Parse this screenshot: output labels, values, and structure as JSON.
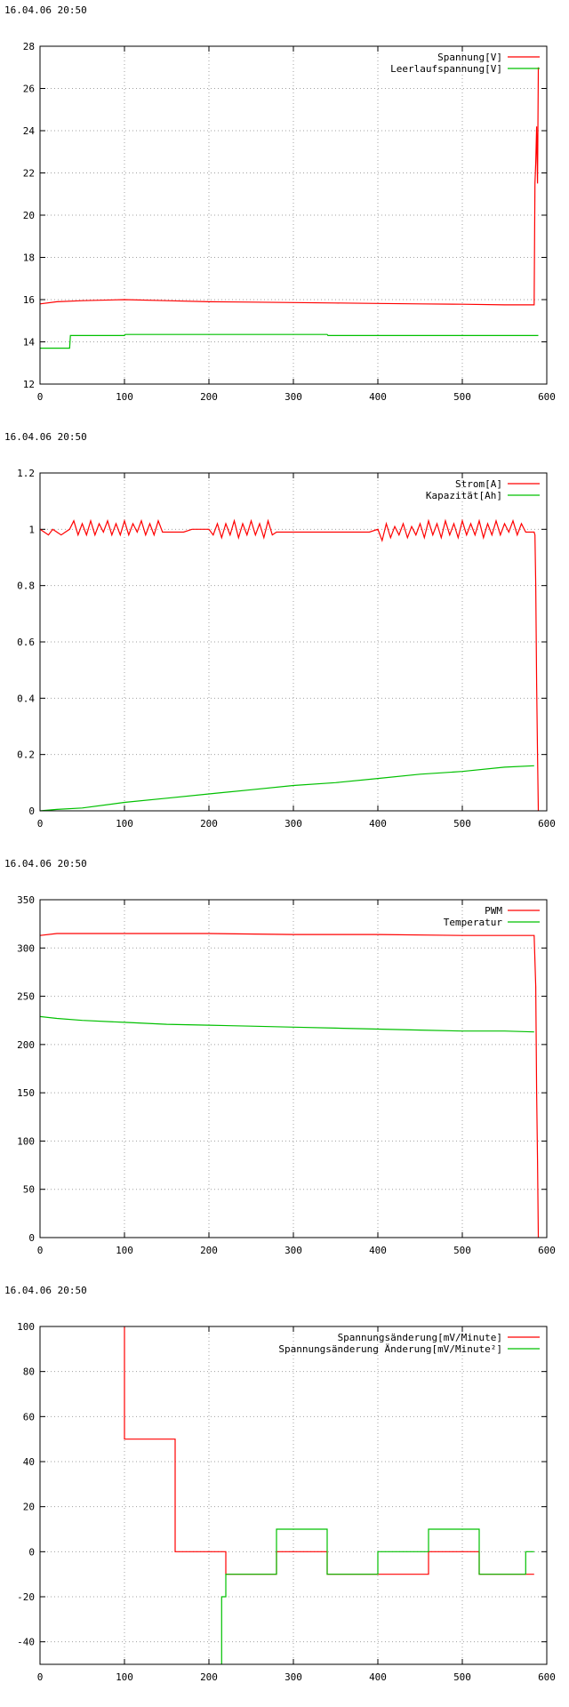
{
  "chart_data": [
    {
      "type": "line",
      "timestamp": "16.04.06 20:50",
      "xlim": [
        0,
        600
      ],
      "ylim": [
        12,
        28
      ],
      "xticks": [
        0,
        100,
        200,
        300,
        400,
        500,
        600
      ],
      "yticks": [
        12,
        14,
        16,
        18,
        20,
        22,
        24,
        26,
        28
      ],
      "xtick_labels": [
        "0",
        "100",
        "200",
        "300",
        "400",
        "500",
        "600"
      ],
      "ytick_labels": [
        "12",
        "14",
        "16",
        "18",
        "20",
        "22",
        "24",
        "26",
        "28"
      ],
      "grid": true,
      "legend_position": "top-right",
      "series": [
        {
          "name": "Spannung[V]",
          "color": "#ff0000",
          "x": [
            0,
            20,
            50,
            100,
            150,
            200,
            250,
            300,
            350,
            400,
            450,
            500,
            550,
            585,
            586,
            587,
            588,
            589,
            590
          ],
          "y": [
            15.8,
            15.9,
            15.95,
            16.0,
            15.95,
            15.9,
            15.88,
            15.86,
            15.84,
            15.82,
            15.8,
            15.78,
            15.75,
            15.75,
            21.5,
            22.5,
            24.2,
            21.5,
            27.0
          ]
        },
        {
          "name": "Leerlaufspannung[V]",
          "color": "#00c000",
          "x": [
            0,
            35,
            36,
            100,
            101,
            200,
            340,
            341,
            590
          ],
          "y": [
            13.7,
            13.7,
            14.3,
            14.3,
            14.35,
            14.35,
            14.35,
            14.3,
            14.3
          ]
        }
      ]
    },
    {
      "type": "line",
      "timestamp": "16.04.06 20:50",
      "xlim": [
        0,
        600
      ],
      "ylim": [
        0,
        1.2
      ],
      "xticks": [
        0,
        100,
        200,
        300,
        400,
        500,
        600
      ],
      "yticks": [
        0,
        0.2,
        0.4,
        0.6,
        0.8,
        1,
        1.2
      ],
      "xtick_labels": [
        "0",
        "100",
        "200",
        "300",
        "400",
        "500",
        "600"
      ],
      "ytick_labels": [
        "0",
        "0.2",
        "0.4",
        "0.6",
        "0.8",
        "1",
        "1.2"
      ],
      "grid": true,
      "legend_position": "top-right",
      "series": [
        {
          "name": "Strom[A]",
          "color": "#ff0000",
          "x": [
            0,
            5,
            10,
            15,
            20,
            25,
            30,
            35,
            40,
            45,
            50,
            55,
            60,
            65,
            70,
            75,
            80,
            85,
            90,
            95,
            100,
            105,
            110,
            115,
            120,
            125,
            130,
            135,
            140,
            145,
            150,
            160,
            170,
            180,
            190,
            200,
            205,
            210,
            215,
            220,
            225,
            230,
            235,
            240,
            245,
            250,
            255,
            260,
            265,
            270,
            275,
            280,
            290,
            300,
            310,
            320,
            330,
            340,
            350,
            360,
            370,
            380,
            390,
            400,
            405,
            410,
            415,
            420,
            425,
            430,
            435,
            440,
            445,
            450,
            455,
            460,
            465,
            470,
            475,
            480,
            485,
            490,
            495,
            500,
            505,
            510,
            515,
            520,
            525,
            530,
            535,
            540,
            545,
            550,
            555,
            560,
            565,
            570,
            575,
            580,
            585,
            586,
            587,
            588,
            589,
            590
          ],
          "y": [
            1.0,
            0.99,
            0.98,
            1.0,
            0.99,
            0.98,
            0.99,
            1.0,
            1.03,
            0.98,
            1.02,
            0.98,
            1.03,
            0.98,
            1.02,
            0.99,
            1.03,
            0.98,
            1.02,
            0.98,
            1.03,
            0.98,
            1.02,
            0.99,
            1.03,
            0.98,
            1.02,
            0.98,
            1.03,
            0.99,
            0.99,
            0.99,
            0.99,
            1.0,
            1.0,
            1.0,
            0.98,
            1.02,
            0.97,
            1.02,
            0.98,
            1.03,
            0.97,
            1.02,
            0.98,
            1.03,
            0.98,
            1.02,
            0.97,
            1.03,
            0.98,
            0.99,
            0.99,
            0.99,
            0.99,
            0.99,
            0.99,
            0.99,
            0.99,
            0.99,
            0.99,
            0.99,
            0.99,
            1.0,
            0.96,
            1.02,
            0.97,
            1.01,
            0.98,
            1.02,
            0.97,
            1.01,
            0.98,
            1.02,
            0.97,
            1.03,
            0.98,
            1.02,
            0.97,
            1.03,
            0.98,
            1.02,
            0.97,
            1.03,
            0.98,
            1.02,
            0.98,
            1.03,
            0.97,
            1.02,
            0.98,
            1.03,
            0.98,
            1.02,
            0.99,
            1.03,
            0.98,
            1.02,
            0.99,
            0.99,
            0.99,
            0.98,
            0.8,
            0.45,
            0.2,
            0.0
          ]
        },
        {
          "name": "Kapazität[Ah]",
          "color": "#00c000",
          "x": [
            0,
            20,
            50,
            100,
            150,
            200,
            250,
            300,
            350,
            400,
            450,
            500,
            550,
            585
          ],
          "y": [
            0,
            0.005,
            0.01,
            0.03,
            0.045,
            0.06,
            0.075,
            0.09,
            0.1,
            0.115,
            0.13,
            0.14,
            0.155,
            0.16
          ]
        }
      ]
    },
    {
      "type": "line",
      "timestamp": "16.04.06 20:50",
      "xlim": [
        0,
        600
      ],
      "ylim": [
        0,
        350
      ],
      "xticks": [
        0,
        100,
        200,
        300,
        400,
        500,
        600
      ],
      "yticks": [
        0,
        50,
        100,
        150,
        200,
        250,
        300,
        350
      ],
      "xtick_labels": [
        "0",
        "100",
        "200",
        "300",
        "400",
        "500",
        "600"
      ],
      "ytick_labels": [
        "0",
        "50",
        "100",
        "150",
        "200",
        "250",
        "300",
        "350"
      ],
      "grid": true,
      "legend_position": "top-right",
      "series": [
        {
          "name": "PWM",
          "color": "#ff0000",
          "x": [
            0,
            20,
            100,
            200,
            300,
            400,
            500,
            585,
            587,
            588,
            589,
            590
          ],
          "y": [
            313,
            315,
            315,
            315,
            314,
            314,
            313,
            313,
            260,
            150,
            80,
            0
          ]
        },
        {
          "name": "Temperatur",
          "color": "#00c000",
          "x": [
            0,
            20,
            50,
            100,
            150,
            200,
            250,
            300,
            350,
            400,
            450,
            500,
            550,
            585
          ],
          "y": [
            229,
            227,
            225,
            223,
            221,
            220,
            219,
            218,
            217,
            216,
            215,
            214,
            214,
            213
          ]
        }
      ]
    },
    {
      "type": "line",
      "timestamp": "16.04.06 20:50",
      "xlim": [
        0,
        600
      ],
      "ylim": [
        -50,
        100
      ],
      "xticks": [
        0,
        100,
        200,
        300,
        400,
        500,
        600
      ],
      "yticks": [
        -40,
        -20,
        0,
        20,
        40,
        60,
        80,
        100
      ],
      "xtick_labels": [
        "0",
        "100",
        "200",
        "300",
        "400",
        "500",
        "600"
      ],
      "ytick_labels": [
        "-40",
        "-20",
        "0",
        "20",
        "40",
        "60",
        "80",
        "100"
      ],
      "grid": true,
      "legend_position": "top-right",
      "series": [
        {
          "name": "Spannungsänderung[mV/Minute]",
          "color": "#ff0000",
          "x": [
            100,
            100,
            160,
            160,
            220,
            220,
            280,
            280,
            340,
            340,
            460,
            460,
            520,
            520,
            585
          ],
          "y": [
            100,
            50,
            50,
            0,
            0,
            -10,
            -10,
            0,
            0,
            -10,
            -10,
            0,
            0,
            -10,
            -10
          ]
        },
        {
          "name": "Spannungsänderung Änderung[mV/Minute²]",
          "color": "#00c000",
          "x": [
            215,
            215,
            220,
            220,
            280,
            280,
            340,
            340,
            400,
            400,
            460,
            460,
            520,
            520,
            575,
            575,
            585
          ],
          "y": [
            -50,
            -20,
            -20,
            -10,
            -10,
            10,
            10,
            -10,
            -10,
            0,
            0,
            10,
            10,
            -10,
            -10,
            0,
            0
          ]
        }
      ]
    }
  ]
}
